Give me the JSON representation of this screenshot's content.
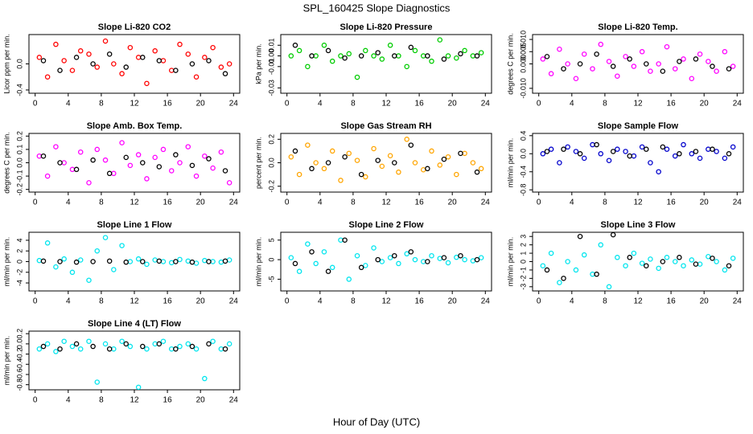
{
  "title": "SPL_160425  Slope Diagnostics",
  "xlabel": "Hour of Day (UTC)",
  "chart_data": [
    {
      "type": "scatter",
      "title": "Slope Li-820 CO2",
      "ylabel": "Licor ppm per min.",
      "xlim": [
        -0.75,
        24.75
      ],
      "xticks": [
        0,
        4,
        8,
        12,
        16,
        20,
        24
      ],
      "ylim": [
        -0.45,
        0.45
      ],
      "yticks": [
        -0.4,
        {
          "value": 0,
          "label": "0.0"
        }
      ],
      "series": [
        {
          "color": "#ff0000",
          "x": [
            0.5,
            1.5,
            2.5,
            3.5,
            4.5,
            5.5,
            6.5,
            7.5,
            8.5,
            9.5,
            10.5,
            11.5,
            12.5,
            13.5,
            14.5,
            15.5,
            16.5,
            17.5,
            18.5,
            19.5,
            20.5,
            21.5,
            22.5,
            23.5
          ],
          "values": [
            0.1,
            -0.2,
            0.3,
            0.05,
            -0.1,
            0.2,
            0.15,
            -0.05,
            0.35,
            0.0,
            -0.15,
            0.25,
            0.1,
            -0.3,
            0.2,
            0.05,
            -0.1,
            0.3,
            0.15,
            -0.2,
            0.1,
            0.25,
            -0.05,
            0.0
          ]
        },
        {
          "color": "#000000",
          "x": [
            1,
            3,
            5,
            7,
            9,
            11,
            13,
            15,
            17,
            19,
            21,
            23
          ],
          "values": [
            0.05,
            -0.1,
            0.1,
            0.0,
            0.15,
            -0.05,
            0.1,
            0.05,
            -0.1,
            0.0,
            0.05,
            -0.15
          ]
        }
      ]
    },
    {
      "type": "scatter",
      "title": "Slope Li-820 Pressure",
      "ylabel": "kPa per min.",
      "xlim": [
        -0.75,
        24.75
      ],
      "xticks": [
        0,
        4,
        8,
        12,
        16,
        20,
        24
      ],
      "ylim": [
        -0.035,
        0.02
      ],
      "yticks": [
        -0.03,
        -0.01,
        {
          "value": 0,
          "label": "0.00"
        },
        0.01
      ],
      "series": [
        {
          "color": "#00cc00",
          "x": [
            0.5,
            1.5,
            2.5,
            3.5,
            4.5,
            5.5,
            6.5,
            7.5,
            8.5,
            9.5,
            10.5,
            11.5,
            12.5,
            13.5,
            14.5,
            15.5,
            16.5,
            17.5,
            18.5,
            19.5,
            20.5,
            21.5,
            22.5,
            23.5
          ],
          "values": [
            0.0,
            0.005,
            -0.01,
            0.0,
            0.01,
            -0.005,
            0.0,
            0.002,
            -0.02,
            0.005,
            0.0,
            -0.003,
            0.01,
            0.0,
            -0.01,
            0.005,
            0.0,
            -0.005,
            0.015,
            0.0,
            -0.002,
            0.005,
            0.0,
            0.003
          ]
        },
        {
          "color": "#000000",
          "x": [
            1,
            3,
            5,
            7,
            9,
            11,
            13,
            15,
            17,
            19,
            21,
            23
          ],
          "values": [
            0.01,
            0.0,
            0.005,
            -0.002,
            0.0,
            0.003,
            0.0,
            0.008,
            0.0,
            -0.003,
            0.002,
            0.0
          ]
        }
      ]
    },
    {
      "type": "scatter",
      "title": "Slope Li-820 Temp.",
      "ylabel": "degrees C per min.",
      "xlim": [
        -0.75,
        24.75
      ],
      "xticks": [
        0,
        4,
        8,
        12,
        16,
        20,
        24
      ],
      "ylim": [
        -0.012,
        0.012
      ],
      "yticks": [
        {
          "value": -0.01,
          "label": "-0.010"
        },
        {
          "value": 0,
          "label": "0.000"
        },
        0.005,
        {
          "value": 0.01,
          "label": "0.010"
        }
      ],
      "series": [
        {
          "color": "#ff00ff",
          "x": [
            0.5,
            1.5,
            2.5,
            3.5,
            4.5,
            5.5,
            6.5,
            7.5,
            8.5,
            9.5,
            10.5,
            11.5,
            12.5,
            13.5,
            14.5,
            15.5,
            16.5,
            17.5,
            18.5,
            19.5,
            20.5,
            21.5,
            22.5,
            23.5
          ],
          "values": [
            0.002,
            -0.004,
            0.006,
            0.0,
            -0.006,
            0.004,
            -0.002,
            0.008,
            0.001,
            -0.005,
            0.003,
            -0.001,
            0.005,
            -0.003,
            0.0,
            0.007,
            -0.002,
            0.002,
            -0.006,
            0.004,
            0.001,
            -0.003,
            0.005,
            -0.001
          ]
        },
        {
          "color": "#000000",
          "x": [
            1,
            3,
            5,
            7,
            9,
            11,
            13,
            15,
            17,
            19,
            21,
            23
          ],
          "values": [
            0.003,
            -0.002,
            0.0,
            0.004,
            -0.001,
            0.002,
            0.0,
            -0.003,
            0.001,
            0.002,
            -0.001,
            -0.002
          ]
        }
      ]
    },
    {
      "type": "scatter",
      "title": "Slope Amb. Box Temp.",
      "ylabel": "degrees C per min.",
      "xlim": [
        -0.75,
        24.75
      ],
      "xticks": [
        0,
        4,
        8,
        12,
        16,
        20,
        24
      ],
      "ylim": [
        -0.22,
        0.22
      ],
      "yticks": [
        -0.2,
        -0.1,
        {
          "value": 0,
          "label": "0.0"
        },
        0.1,
        0.2
      ],
      "series": [
        {
          "color": "#ff00ff",
          "x": [
            0.5,
            1.5,
            2.5,
            3.5,
            4.5,
            5.5,
            6.5,
            7.5,
            8.5,
            9.5,
            10.5,
            11.5,
            12.5,
            13.5,
            14.5,
            15.5,
            16.5,
            17.5,
            18.5,
            19.5,
            20.5,
            21.5,
            22.5,
            23.5
          ],
          "values": [
            0.05,
            -0.1,
            0.12,
            0.0,
            -0.05,
            0.08,
            -0.15,
            0.1,
            0.02,
            -0.08,
            0.15,
            -0.02,
            0.06,
            -0.12,
            0.04,
            0.1,
            -0.06,
            0.0,
            0.12,
            -0.1,
            0.05,
            -0.04,
            0.08,
            -0.15
          ]
        },
        {
          "color": "#000000",
          "x": [
            1,
            3,
            5,
            7,
            9,
            11,
            13,
            15,
            17,
            19,
            21,
            23
          ],
          "values": [
            0.05,
            0.0,
            -0.05,
            0.02,
            -0.08,
            0.04,
            0.0,
            -0.03,
            0.06,
            -0.02,
            0.03,
            -0.06
          ]
        }
      ]
    },
    {
      "type": "scatter",
      "title": "Slope Gas Stream RH",
      "ylabel": "percent per min.",
      "xlim": [
        -0.75,
        24.75
      ],
      "xticks": [
        0,
        4,
        8,
        12,
        16,
        20,
        24
      ],
      "ylim": [
        -0.25,
        0.25
      ],
      "yticks": [
        -0.2,
        {
          "value": 0,
          "label": "0.0"
        },
        0.2
      ],
      "series": [
        {
          "color": "#ffa500",
          "x": [
            0.5,
            1.5,
            2.5,
            3.5,
            4.5,
            5.5,
            6.5,
            7.5,
            8.5,
            9.5,
            10.5,
            11.5,
            12.5,
            13.5,
            14.5,
            15.5,
            16.5,
            17.5,
            18.5,
            19.5,
            20.5,
            21.5,
            22.5,
            23.5
          ],
          "values": [
            0.05,
            -0.1,
            0.15,
            0.0,
            -0.05,
            0.1,
            -0.15,
            0.08,
            0.02,
            -0.12,
            0.12,
            -0.03,
            0.06,
            -0.08,
            0.2,
            0.0,
            -0.06,
            0.1,
            -0.02,
            0.05,
            -0.1,
            0.08,
            0.0,
            -0.05
          ]
        },
        {
          "color": "#000000",
          "x": [
            1,
            3,
            5,
            7,
            9,
            11,
            13,
            15,
            17,
            19,
            21,
            23
          ],
          "values": [
            0.1,
            -0.05,
            0.0,
            0.05,
            -0.1,
            0.02,
            0.0,
            0.15,
            -0.05,
            0.03,
            0.08,
            -0.08
          ]
        }
      ]
    },
    {
      "type": "scatter",
      "title": "Slope Sample Flow",
      "ylabel": "ml/min per min.",
      "xlim": [
        -0.75,
        24.75
      ],
      "xticks": [
        0,
        4,
        8,
        12,
        16,
        20,
        24
      ],
      "ylim": [
        -0.85,
        0.45
      ],
      "yticks": [
        -0.8,
        -0.4,
        {
          "value": 0,
          "label": "0.0"
        },
        0.4
      ],
      "series": [
        {
          "color": "#0000cc",
          "x": [
            0.5,
            1.5,
            2.5,
            3.5,
            4.5,
            5.5,
            6.5,
            7.5,
            8.5,
            9.5,
            10.5,
            11.5,
            12.5,
            13.5,
            14.5,
            15.5,
            16.5,
            17.5,
            18.5,
            19.5,
            20.5,
            21.5,
            22.5,
            23.5
          ],
          "values": [
            0.0,
            0.1,
            -0.2,
            0.15,
            0.05,
            -0.1,
            0.2,
            0.0,
            -0.15,
            0.1,
            0.05,
            -0.05,
            0.15,
            -0.2,
            -0.4,
            0.1,
            -0.05,
            0.2,
            0.0,
            -0.1,
            0.1,
            0.05,
            -0.1,
            0.15
          ]
        },
        {
          "color": "#000000",
          "x": [
            1,
            3,
            5,
            7,
            9,
            11,
            13,
            15,
            17,
            19,
            21,
            23
          ],
          "values": [
            0.05,
            0.1,
            0.0,
            0.2,
            0.05,
            -0.05,
            0.1,
            0.15,
            0.0,
            0.05,
            0.1,
            0.0
          ]
        }
      ]
    },
    {
      "type": "scatter",
      "title": "Slope Line 1 Flow",
      "ylabel": "ml/min per min.",
      "xlim": [
        -0.75,
        24.75
      ],
      "xticks": [
        0,
        4,
        8,
        12,
        16,
        20,
        24
      ],
      "ylim": [
        -5.5,
        5.5
      ],
      "yticks": [
        -4,
        -2,
        0,
        2,
        4
      ],
      "series": [
        {
          "color": "#00e5ee",
          "x": [
            0.5,
            1.5,
            2.5,
            3.5,
            4.5,
            5.5,
            6.5,
            7.5,
            8.5,
            9.5,
            10.5,
            11.5,
            12.5,
            13.5,
            14.5,
            15.5,
            16.5,
            17.5,
            18.5,
            19.5,
            20.5,
            21.5,
            22.5,
            23.5
          ],
          "values": [
            0.2,
            3.5,
            -1,
            0.5,
            -2,
            0.3,
            -3.5,
            2,
            4.5,
            -1.5,
            3,
            0.0,
            0.5,
            -0.5,
            0.3,
            0.0,
            -0.2,
            0.4,
            0.1,
            -0.3,
            0.2,
            0.0,
            -0.1,
            0.3
          ]
        },
        {
          "color": "#000000",
          "x": [
            1,
            3,
            5,
            7,
            9,
            11,
            13,
            15,
            17,
            19,
            21,
            23
          ],
          "values": [
            0.1,
            0,
            -0.1,
            0,
            0.1,
            -0.1,
            0,
            0.1,
            0,
            -0.1,
            0,
            0.1
          ]
        }
      ]
    },
    {
      "type": "scatter",
      "title": "Slope Line 2 Flow",
      "ylabel": "ml/min per min.",
      "xlim": [
        -0.75,
        24.75
      ],
      "xticks": [
        0,
        4,
        8,
        12,
        16,
        20,
        24
      ],
      "ylim": [
        -8,
        7
      ],
      "yticks": [
        -5,
        0,
        5
      ],
      "series": [
        {
          "color": "#00e5ee",
          "x": [
            0.5,
            1.5,
            2.5,
            3.5,
            4.5,
            5.5,
            6.5,
            7.5,
            8.5,
            9.5,
            10.5,
            11.5,
            12.5,
            13.5,
            14.5,
            15.5,
            16.5,
            17.5,
            18.5,
            19.5,
            20.5,
            21.5,
            22.5,
            23.5
          ],
          "values": [
            0.5,
            -3,
            4,
            -1,
            2,
            -2,
            5,
            -5,
            1,
            -1.5,
            3,
            -0.5,
            0.5,
            -1,
            1.5,
            0,
            -0.5,
            1,
            0.3,
            -0.8,
            0.6,
            0,
            -0.3,
            0.5
          ]
        },
        {
          "color": "#000000",
          "x": [
            1,
            3,
            5,
            7,
            9,
            11,
            13,
            15,
            17,
            19,
            21,
            23
          ],
          "values": [
            -1,
            2,
            -3,
            5,
            -2,
            0,
            1,
            2,
            -0.5,
            0.5,
            1,
            0
          ]
        }
      ]
    },
    {
      "type": "scatter",
      "title": "Slope Line 3 Flow",
      "ylabel": "ml/min per min.",
      "xlim": [
        -0.75,
        24.75
      ],
      "xticks": [
        0,
        4,
        8,
        12,
        16,
        20,
        24
      ],
      "ylim": [
        -3.5,
        3.5
      ],
      "yticks": [
        -3,
        -2,
        -1,
        0,
        1,
        2,
        3
      ],
      "series": [
        {
          "color": "#00e5ee",
          "x": [
            0.5,
            1.5,
            2.5,
            3.5,
            4.5,
            5.5,
            6.5,
            7.5,
            8.5,
            9.5,
            10.5,
            11.5,
            12.5,
            13.5,
            14.5,
            15.5,
            16.5,
            17.5,
            18.5,
            19.5,
            20.5,
            21.5,
            22.5,
            23.5
          ],
          "values": [
            -0.5,
            1,
            -2.5,
            0,
            -1,
            0.8,
            -1.5,
            2,
            -3,
            0.5,
            -0.5,
            1,
            -0.2,
            0.3,
            -0.8,
            0.5,
            0,
            -0.5,
            0.2,
            -0.3,
            0.6,
            0,
            -1,
            0.4
          ]
        },
        {
          "color": "#000000",
          "x": [
            1,
            3,
            5,
            7,
            9,
            11,
            13,
            15,
            17,
            19,
            21,
            23
          ],
          "values": [
            -1,
            -2,
            3,
            -1.5,
            3.2,
            0.5,
            -0.5,
            0,
            0.5,
            -0.3,
            0.4,
            -0.5
          ]
        }
      ]
    },
    {
      "type": "scatter",
      "title": "Slope Line 4 (LT) Flow",
      "ylabel": "ml/min per min.",
      "xlim": [
        -0.75,
        24.75
      ],
      "xticks": [
        0,
        4,
        8,
        12,
        16,
        20,
        24
      ],
      "ylim": [
        -0.9,
        0.25
      ],
      "yticks": [
        -0.8,
        -0.6,
        -0.4,
        -0.2,
        {
          "value": 0,
          "label": "0.0"
        },
        0.2
      ],
      "series": [
        {
          "color": "#00e5ee",
          "x": [
            0.5,
            1.5,
            2.5,
            3.5,
            4.5,
            5.5,
            6.5,
            7.5,
            8.5,
            9.5,
            10.5,
            11.5,
            12.5,
            13.5,
            14.5,
            15.5,
            16.5,
            17.5,
            18.5,
            19.5,
            20.5,
            21.5,
            22.5,
            23.5
          ],
          "values": [
            -0.1,
            0.0,
            -0.15,
            0.05,
            -0.05,
            -0.1,
            0.05,
            -0.75,
            0.0,
            -0.1,
            0.05,
            -0.05,
            -0.85,
            -0.1,
            0.0,
            0.05,
            -0.1,
            -0.05,
            0.0,
            -0.1,
            -0.68,
            0.05,
            -0.1,
            0.0
          ]
        },
        {
          "color": "#000000",
          "x": [
            1,
            3,
            5,
            7,
            9,
            11,
            13,
            15,
            17,
            19,
            21,
            23
          ],
          "values": [
            -0.05,
            -0.1,
            0.0,
            -0.05,
            -0.1,
            0.0,
            -0.05,
            0.0,
            -0.1,
            -0.05,
            0.0,
            -0.1
          ]
        }
      ]
    }
  ]
}
